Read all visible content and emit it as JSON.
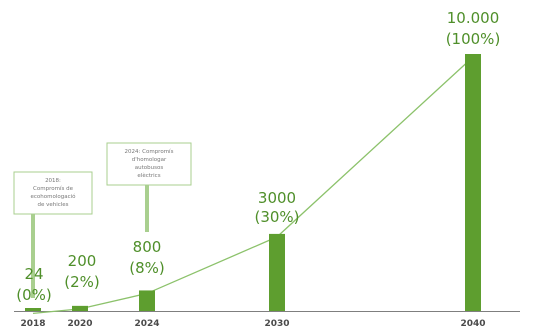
{
  "chart_data": {
    "type": "bar",
    "categories": [
      "2018",
      "2020",
      "2024",
      "2030",
      "2040"
    ],
    "values": [
      24,
      200,
      800,
      3000,
      10000
    ],
    "value_labels": [
      "24",
      "200",
      "800",
      "3000",
      "10.000"
    ],
    "percent_labels": [
      "(0%)",
      "(2%)",
      "(8%)",
      "(30%)",
      "(100%)"
    ],
    "trend_line": true,
    "ylim": [
      0,
      10000
    ],
    "grid": false,
    "legend": "none",
    "colors": {
      "bar": "#5e9e2f",
      "line": "#8cc26b",
      "label": "#4f8f2a",
      "note_border": "#a9cf8f",
      "axis": "#7f7f7f"
    },
    "annotations": [
      {
        "category": "2018",
        "lines": [
          "2018:",
          "Compromís de",
          "ecohomologació",
          "de vehicles"
        ]
      },
      {
        "category": "2024",
        "lines": [
          "2024: Compromís",
          "d'homologar",
          "autobusos",
          "elèctrics"
        ]
      }
    ]
  }
}
